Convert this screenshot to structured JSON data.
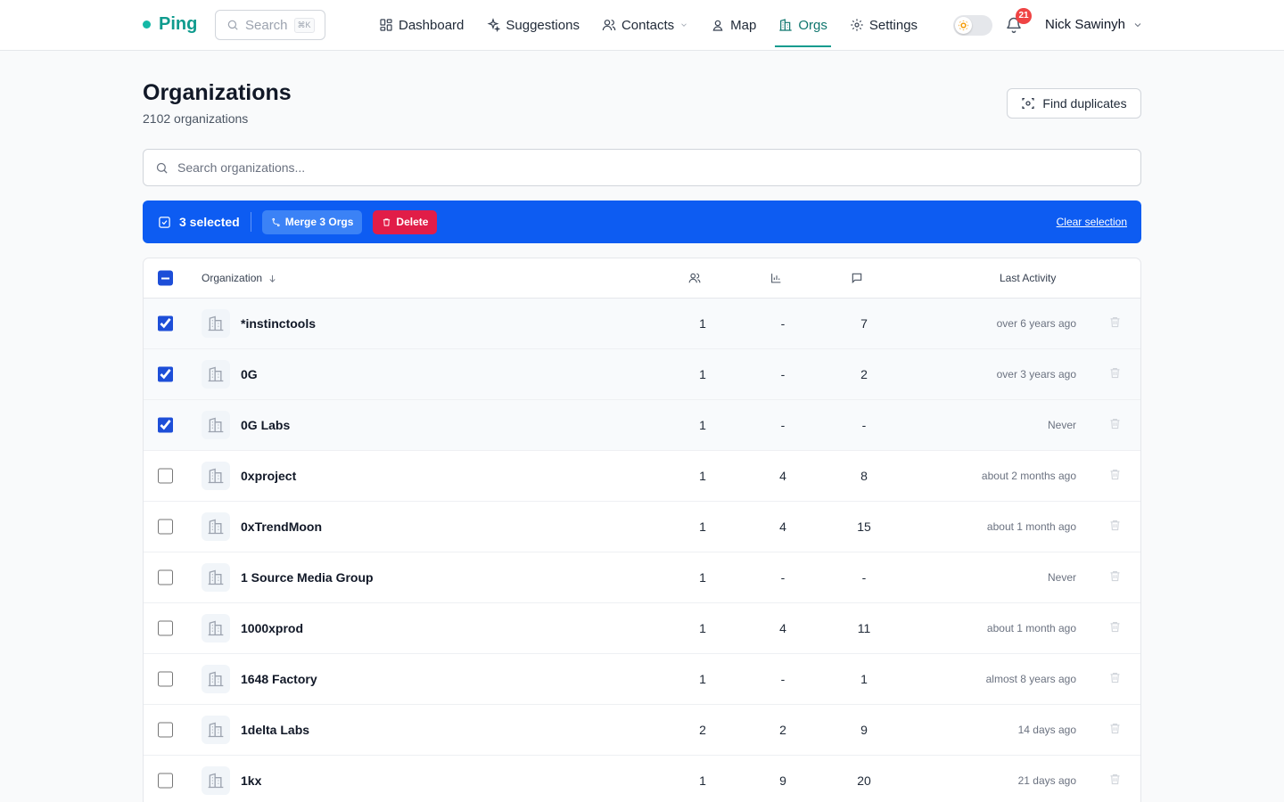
{
  "nav": {
    "brand": "Ping",
    "search": "Search",
    "shortcut": "⌘K",
    "items": [
      "Dashboard",
      "Suggestions",
      "Contacts",
      "Map",
      "Orgs",
      "Settings"
    ],
    "active_item": 4,
    "notifications": "21",
    "user": "Nick Sawinyh"
  },
  "header": {
    "title": "Organizations",
    "subtitle": "2102 organizations",
    "button": "Find duplicates"
  },
  "search_placeholder": "Search organizations...",
  "selection_bar": {
    "count": "3 selected",
    "merge": "Merge 3 Orgs",
    "delete": "Delete",
    "clear": "Clear selection"
  },
  "table": {
    "columns": {
      "organization": "Organization",
      "last_activity": "Last Activity"
    },
    "rows": [
      {
        "selected": true,
        "name": "*instinctools",
        "contacts": 1,
        "stats": "-",
        "messages": 7,
        "last_activity": "over 6 years ago"
      },
      {
        "selected": true,
        "name": "0G",
        "contacts": 1,
        "stats": "-",
        "messages": 2,
        "last_activity": "over 3 years ago"
      },
      {
        "selected": true,
        "name": "0G Labs",
        "contacts": 1,
        "stats": "-",
        "messages": "-",
        "last_activity": "Never"
      },
      {
        "selected": false,
        "name": "0xproject",
        "contacts": 1,
        "stats": 4,
        "messages": 8,
        "last_activity": "about 2 months ago"
      },
      {
        "selected": false,
        "name": "0xTrendMoon",
        "contacts": 1,
        "stats": 4,
        "messages": 15,
        "last_activity": "about 1 month ago"
      },
      {
        "selected": false,
        "name": "1 Source Media Group",
        "contacts": 1,
        "stats": "-",
        "messages": "-",
        "last_activity": "Never"
      },
      {
        "selected": false,
        "name": "1000xprod",
        "contacts": 1,
        "stats": 4,
        "messages": 11,
        "last_activity": "about 1 month ago"
      },
      {
        "selected": false,
        "name": "1648 Factory",
        "contacts": 1,
        "stats": "-",
        "messages": 1,
        "last_activity": "almost 8 years ago"
      },
      {
        "selected": false,
        "name": "1delta Labs",
        "contacts": 2,
        "stats": 2,
        "messages": 9,
        "last_activity": "14 days ago"
      },
      {
        "selected": false,
        "name": "1kx",
        "contacts": 1,
        "stats": 9,
        "messages": 20,
        "last_activity": "21 days ago"
      }
    ]
  }
}
